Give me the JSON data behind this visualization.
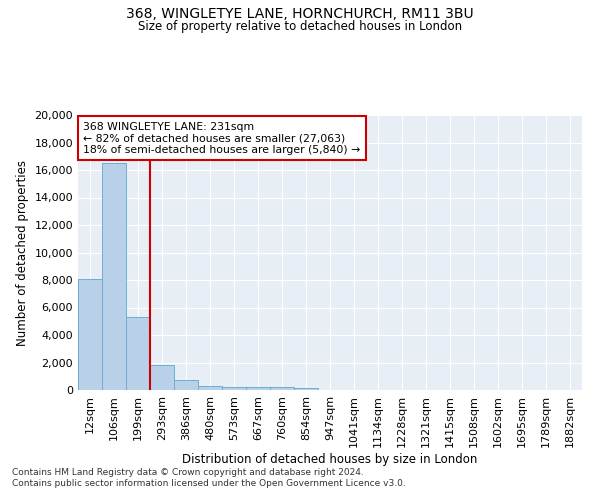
{
  "title_line1": "368, WINGLETYE LANE, HORNCHURCH, RM11 3BU",
  "title_line2": "Size of property relative to detached houses in London",
  "xlabel": "Distribution of detached houses by size in London",
  "ylabel": "Number of detached properties",
  "bar_color": "#b8d0e8",
  "bar_edge_color": "#6aaed6",
  "background_color": "#e8eef5",
  "grid_color": "#ffffff",
  "annotation_text": "368 WINGLETYE LANE: 231sqm\n← 82% of detached houses are smaller (27,063)\n18% of semi-detached houses are larger (5,840) →",
  "vline_color": "#cc0000",
  "ylim": [
    0,
    20000
  ],
  "yticks": [
    0,
    2000,
    4000,
    6000,
    8000,
    10000,
    12000,
    14000,
    16000,
    18000,
    20000
  ],
  "categories": [
    "12sqm",
    "106sqm",
    "199sqm",
    "293sqm",
    "386sqm",
    "480sqm",
    "573sqm",
    "667sqm",
    "760sqm",
    "854sqm",
    "947sqm",
    "1041sqm",
    "1134sqm",
    "1228sqm",
    "1321sqm",
    "1415sqm",
    "1508sqm",
    "1602sqm",
    "1695sqm",
    "1789sqm",
    "1882sqm"
  ],
  "values": [
    8100,
    16500,
    5300,
    1850,
    700,
    320,
    230,
    200,
    190,
    180,
    0,
    0,
    0,
    0,
    0,
    0,
    0,
    0,
    0,
    0,
    0
  ],
  "footnote": "Contains HM Land Registry data © Crown copyright and database right 2024.\nContains public sector information licensed under the Open Government Licence v3.0."
}
